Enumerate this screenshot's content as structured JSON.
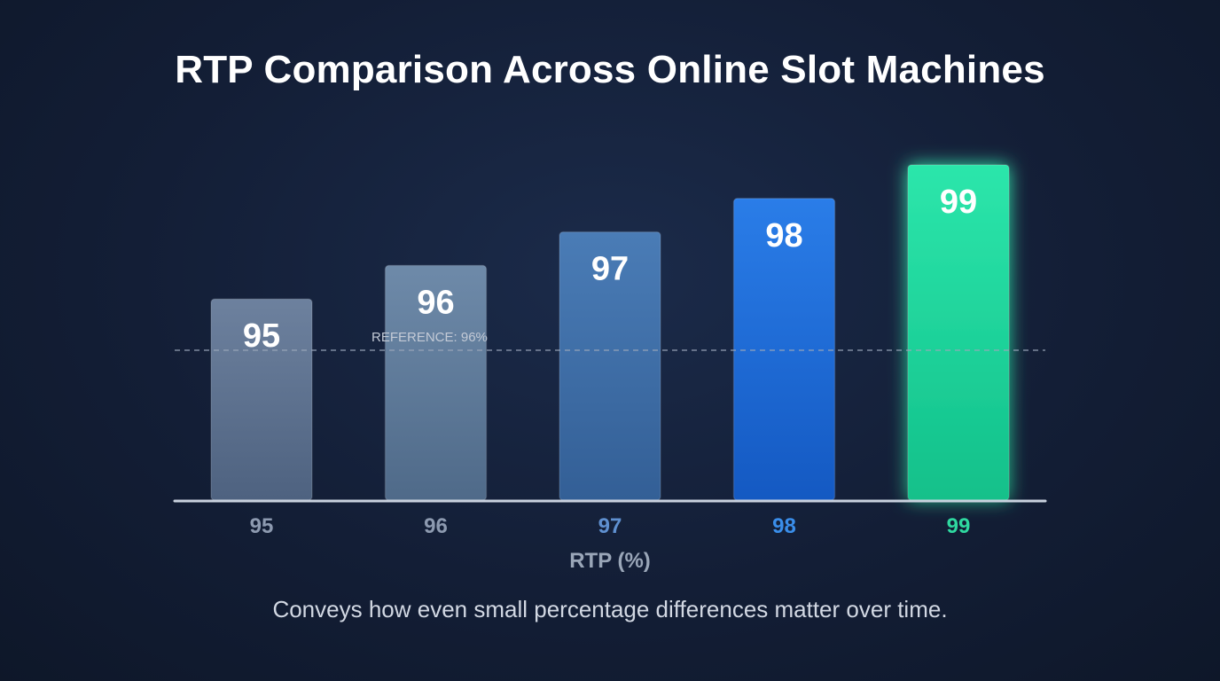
{
  "title": "RTP Comparison Across Online Slot Machines",
  "caption": "Conveys how even small percentage differences matter over time.",
  "chart_data": {
    "type": "bar",
    "title": "RTP Comparison Across Online Slot Machines",
    "categories": [
      "95",
      "96",
      "97",
      "98",
      "99"
    ],
    "values": [
      95,
      96,
      97,
      98,
      99
    ],
    "data_labels": [
      "95",
      "96",
      "97",
      "98",
      "99"
    ],
    "xlabel": "RTP (%)",
    "ylabel": "",
    "ylim": [
      89,
      100
    ],
    "grid": false,
    "legend": "none",
    "reference_line": {
      "value": 96,
      "label": "REFERENCE: 96%"
    },
    "bar_colors": [
      "#5f7493",
      "#627f9f",
      "#3e6fa8",
      "#1b6ad6",
      "#17d49a"
    ],
    "tick_colors": [
      "#8d9ab0",
      "#8d9ab0",
      "#5f90d0",
      "#3a8eea",
      "#2fd8a0"
    ]
  }
}
